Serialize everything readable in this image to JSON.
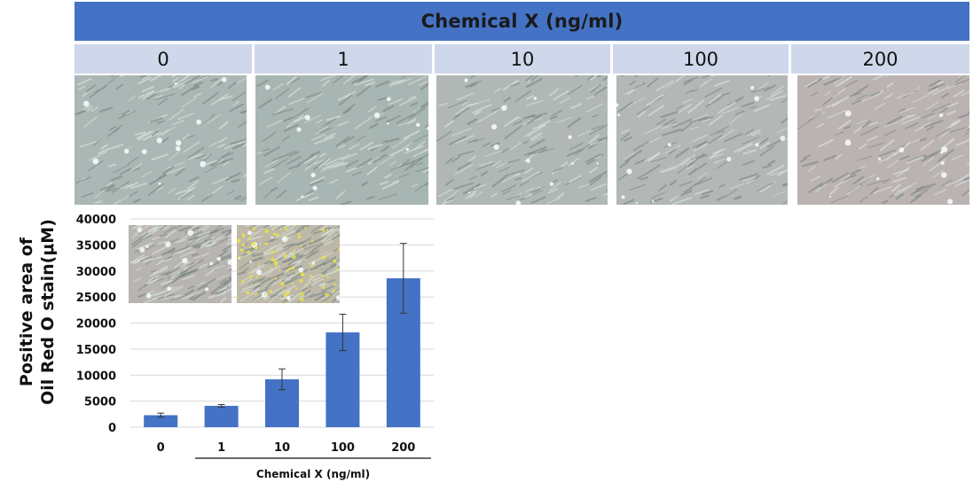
{
  "header": {
    "title": "Chemical  X (ng/ml)",
    "color": "#4472c4"
  },
  "concentrations": [
    "0",
    "1",
    "10",
    "100",
    "200"
  ],
  "micrographs": [
    {
      "name": "micrograph-0",
      "tint": "#aab7b5"
    },
    {
      "name": "micrograph-1",
      "tint": "#a8b6b3"
    },
    {
      "name": "micrograph-10",
      "tint": "#b0b7b4"
    },
    {
      "name": "micrograph-100",
      "tint": "#b3b7b5"
    },
    {
      "name": "micrograph-200",
      "tint": "#bbb3b1"
    }
  ],
  "y_axis_label_lines": [
    "Positive area of",
    "Oil Red O stain(μM)"
  ],
  "chart_data": {
    "type": "bar",
    "categories": [
      "0",
      "1",
      "10",
      "100",
      "200"
    ],
    "values": [
      2300,
      4100,
      9200,
      18200,
      28600
    ],
    "error": [
      400,
      250,
      2000,
      3500,
      6700
    ],
    "xlabel": "Chemical  X (ng/ml)",
    "ylabel": "Positive area of Oil Red O stain(μM)",
    "ylim": [
      0,
      40000
    ],
    "yticks": [
      0,
      5000,
      10000,
      15000,
      20000,
      25000,
      30000,
      35000,
      40000
    ],
    "grid": true,
    "bar_color": "#4472c4"
  }
}
